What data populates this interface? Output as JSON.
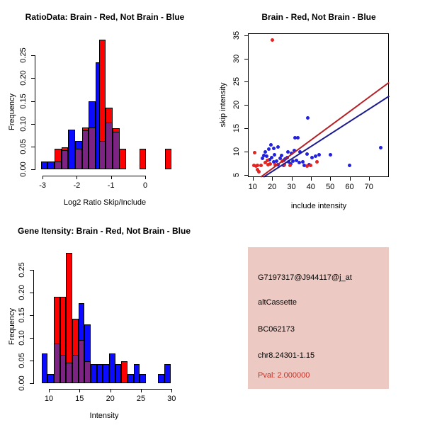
{
  "figure": {
    "background": "#ffffff",
    "description": "R graphics device, 2x2 panel figure: two overlaid histograms, one scatter plot with fit lines, one annotation panel"
  },
  "colors": {
    "bar_red": "#ff0000",
    "bar_blue": "#0b0bff",
    "bar_overlap": "#7c2383",
    "bar_border": "#000000",
    "point_red": "#e32421",
    "point_blue": "#2222dd",
    "line_red": "#b52025",
    "line_blue": "#1b1b8e",
    "axis": "#000000",
    "info_bg": "#ecc9c2",
    "info_text": "#000000",
    "pval_color": "#c53026"
  },
  "chart_data": [
    {
      "id": "ratio-histogram",
      "type": "bar",
      "subtype": "overlaid-histogram",
      "title": "RatioData: Brain - Red, Not Brain - Blue",
      "xlabel": "Log2 Ratio Skip/Include",
      "ylabel": "Frequency",
      "xlim": [
        -3.23,
        0.87
      ],
      "ylim": [
        0,
        0.286
      ],
      "xticks": [
        -3,
        -2,
        -1,
        0
      ],
      "xtick_labels": [
        "-3",
        "-2",
        "-1",
        "0"
      ],
      "yticks": [
        0,
        0.05,
        0.1,
        0.15,
        0.2,
        0.25
      ],
      "ytick_labels": [
        "0.00",
        "0.05",
        "0.10",
        "0.15",
        "0.20",
        "0.25"
      ],
      "legend_note": "Brain = red bars, Not Brain = blue bars, purple = overlap",
      "bars": [
        {
          "x0": -3.05,
          "x1": -2.85,
          "h": 0.017,
          "c": "blue"
        },
        {
          "x0": -2.85,
          "x1": -2.65,
          "h": 0.017,
          "c": "blue"
        },
        {
          "x0": -2.65,
          "x1": -2.45,
          "h": 0.045,
          "c": "red"
        },
        {
          "x0": -2.65,
          "x1": -2.45,
          "h": 0.017,
          "c": "purple"
        },
        {
          "x0": -2.45,
          "x1": -2.25,
          "h": 0.048,
          "c": "red"
        },
        {
          "x0": -2.45,
          "x1": -2.25,
          "h": 0.042,
          "c": "purple"
        },
        {
          "x0": -2.25,
          "x1": -2.05,
          "h": 0.087,
          "c": "blue"
        },
        {
          "x0": -2.05,
          "x1": -1.85,
          "h": 0.063,
          "c": "blue"
        },
        {
          "x0": -2.05,
          "x1": -1.85,
          "h": 0.045,
          "c": "purple"
        },
        {
          "x0": -1.85,
          "x1": -1.65,
          "h": 0.092,
          "c": "red"
        },
        {
          "x0": -1.85,
          "x1": -1.65,
          "h": 0.085,
          "c": "purple"
        },
        {
          "x0": -1.65,
          "x1": -1.45,
          "h": 0.15,
          "c": "blue"
        },
        {
          "x0": -1.65,
          "x1": -1.45,
          "h": 0.092,
          "c": "purple"
        },
        {
          "x0": -1.45,
          "x1": -1.25,
          "h": 0.235,
          "c": "blue"
        },
        {
          "x0": -1.35,
          "x1": -1.15,
          "h": 0.285,
          "c": "red"
        },
        {
          "x0": -1.35,
          "x1": -1.15,
          "h": 0.062,
          "c": "purple"
        },
        {
          "x0": -1.15,
          "x1": -0.95,
          "h": 0.136,
          "c": "red"
        },
        {
          "x0": -1.15,
          "x1": -0.95,
          "h": 0.103,
          "c": "purple"
        },
        {
          "x0": -0.95,
          "x1": -0.75,
          "h": 0.091,
          "c": "red"
        },
        {
          "x0": -0.95,
          "x1": -0.75,
          "h": 0.082,
          "c": "purple"
        },
        {
          "x0": -0.76,
          "x1": -0.56,
          "h": 0.045,
          "c": "red"
        },
        {
          "x0": -0.17,
          "x1": 0.03,
          "h": 0.045,
          "c": "red"
        },
        {
          "x0": 0.57,
          "x1": 0.77,
          "h": 0.045,
          "c": "red"
        }
      ]
    },
    {
      "id": "intensity-scatter",
      "type": "scatter",
      "title": "Brain - Red, Not Brain - Blue",
      "xlabel": "include intensity",
      "ylabel": "skip intensity",
      "xlim": [
        7.5,
        80.3
      ],
      "ylim": [
        4.55,
        35.4
      ],
      "xticks": [
        10,
        20,
        30,
        40,
        50,
        60,
        70
      ],
      "xtick_labels": [
        "10",
        "20",
        "30",
        "40",
        "50",
        "60",
        "70"
      ],
      "yticks": [
        5,
        10,
        15,
        20,
        25,
        30,
        35
      ],
      "ytick_labels": [
        "5",
        "10",
        "15",
        "20",
        "25",
        "30",
        "35"
      ],
      "series": [
        {
          "name": "Not Brain",
          "color_key": "point_blue",
          "points": [
            [
              14.8,
              8.6
            ],
            [
              15.6,
              9.2
            ],
            [
              16.4,
              9.9
            ],
            [
              17.0,
              9.0
            ],
            [
              18.2,
              10.5
            ],
            [
              18.6,
              8.3
            ],
            [
              19.2,
              11.4
            ],
            [
              19.8,
              8.7
            ],
            [
              20.8,
              10.7
            ],
            [
              21.0,
              7.9
            ],
            [
              21.3,
              9.3
            ],
            [
              22.3,
              8.0
            ],
            [
              23.0,
              11.0
            ],
            [
              23.2,
              7.2
            ],
            [
              24.1,
              8.6
            ],
            [
              24.9,
              9.2
            ],
            [
              25.9,
              8.1
            ],
            [
              26.1,
              7.1
            ],
            [
              26.6,
              8.5
            ],
            [
              27.7,
              8.7
            ],
            [
              28.1,
              9.9
            ],
            [
              28.6,
              7.9
            ],
            [
              29.6,
              7.4
            ],
            [
              30.1,
              9.6
            ],
            [
              30.6,
              8.0
            ],
            [
              31.4,
              10.3
            ],
            [
              31.8,
              13.0
            ],
            [
              33.2,
              13.0
            ],
            [
              32.7,
              8.1
            ],
            [
              33.9,
              7.7
            ],
            [
              34.3,
              9.9
            ],
            [
              35.8,
              7.8
            ],
            [
              36.6,
              7.0
            ],
            [
              38.5,
              17.2
            ],
            [
              38.0,
              9.5
            ],
            [
              39.3,
              7.2
            ],
            [
              40.6,
              8.7
            ],
            [
              42.4,
              9.1
            ],
            [
              44.1,
              9.4
            ],
            [
              50.0,
              9.4
            ],
            [
              60.0,
              7.1
            ],
            [
              76.0,
              10.8
            ]
          ]
        },
        {
          "name": "Brain",
          "color_key": "point_red",
          "points": [
            [
              20.0,
              34.0
            ],
            [
              11.0,
              9.8
            ],
            [
              10.6,
              7.1
            ],
            [
              11.8,
              6.9
            ],
            [
              12.3,
              6.1
            ],
            [
              13.2,
              5.7
            ],
            [
              12.6,
              7.0
            ],
            [
              14.4,
              7.1
            ],
            [
              16.6,
              7.6
            ],
            [
              17.4,
              8.1
            ],
            [
              18.0,
              7.2
            ],
            [
              19.0,
              7.4
            ],
            [
              21.4,
              7.2
            ],
            [
              25.3,
              8.0
            ],
            [
              26.5,
              7.2
            ],
            [
              29.3,
              7.0
            ],
            [
              38.0,
              6.9
            ],
            [
              40.0,
              7.1
            ],
            [
              43.0,
              7.9
            ]
          ]
        }
      ],
      "fit_lines": [
        {
          "name": "not-brain-fit",
          "color_key": "line_blue",
          "from": [
            15.5,
            4.55
          ],
          "to": [
            80.3,
            21.9
          ]
        },
        {
          "name": "brain-fit",
          "color_key": "line_red",
          "from": [
            14.2,
            4.55
          ],
          "to": [
            80.3,
            24.8
          ]
        }
      ]
    },
    {
      "id": "gene-intensity-histogram",
      "type": "bar",
      "subtype": "overlaid-histogram",
      "title": "Gene Itensity: Brain - Red, Not Brain - Blue",
      "xlabel": "Intensity",
      "ylabel": "Frequency",
      "xlim": [
        7.46,
        30.54
      ],
      "ylim": [
        0,
        0.289
      ],
      "xticks": [
        10,
        15,
        20,
        25,
        30
      ],
      "xtick_labels": [
        "10",
        "15",
        "20",
        "25",
        "30"
      ],
      "yticks": [
        0,
        0.05,
        0.1,
        0.15,
        0.2,
        0.25
      ],
      "ytick_labels": [
        "0.00",
        "0.05",
        "0.10",
        "0.15",
        "0.20",
        "0.25"
      ],
      "legend_note": "Brain = red bars, Not Brain = blue bars, purple = overlap",
      "bars": [
        {
          "x0": 8.8,
          "x1": 9.8,
          "h": 0.065,
          "c": "blue"
        },
        {
          "x0": 9.8,
          "x1": 10.8,
          "h": 0.02,
          "c": "blue"
        },
        {
          "x0": 10.8,
          "x1": 11.8,
          "h": 0.19,
          "c": "red"
        },
        {
          "x0": 10.8,
          "x1": 11.8,
          "h": 0.0875,
          "c": "purple"
        },
        {
          "x0": 11.8,
          "x1": 12.8,
          "h": 0.19,
          "c": "red"
        },
        {
          "x0": 11.8,
          "x1": 12.8,
          "h": 0.0625,
          "c": "purple"
        },
        {
          "x0": 12.8,
          "x1": 13.8,
          "h": 0.288,
          "c": "red"
        },
        {
          "x0": 12.8,
          "x1": 13.8,
          "h": 0.045,
          "c": "purple"
        },
        {
          "x0": 13.8,
          "x1": 14.8,
          "h": 0.142,
          "c": "red"
        },
        {
          "x0": 13.8,
          "x1": 14.8,
          "h": 0.0625,
          "c": "purple"
        },
        {
          "x0": 14.8,
          "x1": 15.8,
          "h": 0.176,
          "c": "blue"
        },
        {
          "x0": 14.8,
          "x1": 15.8,
          "h": 0.096,
          "c": "purple"
        },
        {
          "x0": 15.8,
          "x1": 16.8,
          "h": 0.13,
          "c": "blue"
        },
        {
          "x0": 15.8,
          "x1": 16.8,
          "h": 0.048,
          "c": "purple"
        },
        {
          "x0": 16.8,
          "x1": 17.8,
          "h": 0.043,
          "c": "blue"
        },
        {
          "x0": 17.8,
          "x1": 18.8,
          "h": 0.043,
          "c": "blue"
        },
        {
          "x0": 18.8,
          "x1": 19.8,
          "h": 0.043,
          "c": "blue"
        },
        {
          "x0": 19.8,
          "x1": 20.8,
          "h": 0.065,
          "c": "blue"
        },
        {
          "x0": 20.8,
          "x1": 21.8,
          "h": 0.043,
          "c": "blue"
        },
        {
          "x0": 21.8,
          "x1": 22.8,
          "h": 0.048,
          "c": "red"
        },
        {
          "x0": 22.8,
          "x1": 23.8,
          "h": 0.02,
          "c": "blue"
        },
        {
          "x0": 23.8,
          "x1": 24.8,
          "h": 0.043,
          "c": "blue"
        },
        {
          "x0": 24.8,
          "x1": 25.8,
          "h": 0.02,
          "c": "blue"
        },
        {
          "x0": 27.8,
          "x1": 28.8,
          "h": 0.02,
          "c": "blue"
        },
        {
          "x0": 28.8,
          "x1": 29.8,
          "h": 0.043,
          "c": "blue"
        }
      ]
    }
  ],
  "info_panel": {
    "probe_id": "G7197317@J944117@j_at",
    "event_type": "altCassette",
    "accession": "BC062173",
    "location": "chr8.24301-1.15",
    "pval_text": "Pval: 2.000000"
  }
}
